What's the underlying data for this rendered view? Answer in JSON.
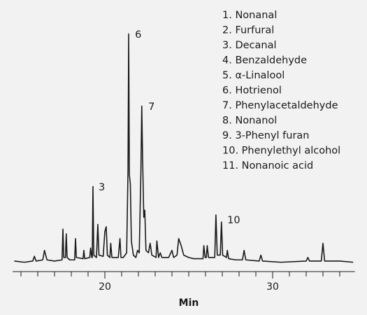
{
  "chart_data": {
    "type": "line",
    "xlabel": "Min",
    "color": "#1a1a1a",
    "xlim": [
      14.5,
      34.9
    ],
    "ylim": [
      0,
      100
    ],
    "xticks": [
      20,
      30
    ],
    "x_minor_ticks": [
      15,
      16,
      17,
      18,
      19,
      20,
      21,
      22,
      23,
      24,
      25,
      26,
      27,
      28,
      29,
      30,
      31,
      32,
      33,
      34
    ],
    "compound_list": [
      "1. Nonanal",
      "2. Furfural",
      "3. Decanal",
      "4. Benzaldehyde",
      "5. α-Linalool",
      "6. Hotrienol",
      "7. Phenylacetaldehyde",
      "8. Nonanol",
      "9. 3-Phenyl furan",
      "10. Phenylethyl alcohol",
      "11. Nonanoic acid"
    ],
    "annotations": [
      {
        "text": "3",
        "x": 19.46,
        "y": 32.5
      },
      {
        "text": "6",
        "x": 21.63,
        "y": 97
      },
      {
        "text": "7",
        "x": 22.42,
        "y": 66.6
      },
      {
        "text": "10",
        "x": 27.13,
        "y": 18.6
      }
    ],
    "x": [
      14.6,
      15.2,
      15.7,
      15.8,
      15.9,
      16.3,
      16.4,
      16.55,
      17.0,
      17.45,
      17.5,
      17.55,
      17.65,
      17.7,
      17.75,
      17.9,
      18.2,
      18.25,
      18.3,
      18.7,
      18.75,
      18.8,
      19.1,
      19.15,
      19.22,
      19.25,
      19.29,
      19.34,
      19.5,
      19.58,
      19.65,
      19.9,
      20.0,
      20.08,
      20.15,
      20.3,
      20.35,
      20.42,
      20.8,
      20.9,
      20.96,
      21.1,
      21.3,
      21.38,
      21.42,
      21.46,
      21.52,
      21.58,
      21.7,
      21.85,
      21.95,
      22.05,
      22.15,
      22.2,
      22.25,
      22.32,
      22.38,
      22.45,
      22.6,
      22.7,
      22.8,
      23.05,
      23.1,
      23.2,
      23.3,
      23.4,
      23.8,
      24.0,
      24.1,
      24.3,
      24.4,
      24.55,
      24.7,
      25.0,
      25.3,
      25.85,
      25.9,
      25.98,
      26.05,
      26.1,
      26.18,
      26.55,
      26.62,
      26.7,
      26.88,
      26.95,
      27.02,
      27.25,
      27.3,
      27.38,
      27.8,
      28.2,
      28.3,
      28.4,
      29.2,
      29.3,
      29.4,
      30.5,
      32.0,
      32.1,
      32.2,
      32.9,
      33.0,
      33.1,
      34.0,
      34.8
    ],
    "values": [
      1.5,
      1,
      1.5,
      3.5,
      1.5,
      2,
      6,
      2,
      1.5,
      2,
      15,
      3,
      3,
      13,
      3,
      2,
      2,
      11,
      3,
      2.5,
      6,
      2.5,
      3,
      7,
      3,
      3,
      33,
      4,
      3,
      17,
      4,
      3.5,
      14,
      16,
      4,
      3,
      9,
      3,
      3,
      11,
      3,
      3,
      5,
      40,
      97.5,
      38,
      34,
      10,
      4,
      3,
      6,
      5,
      40,
      67,
      45,
      20,
      23,
      6,
      5,
      9,
      4,
      3,
      10,
      3,
      5,
      3,
      3,
      6,
      3,
      4,
      11,
      8,
      4,
      3,
      2.5,
      2.5,
      8,
      3,
      3,
      8,
      3,
      3,
      21,
      4,
      4,
      18,
      4,
      3,
      6,
      2.5,
      2,
      2,
      6,
      2,
      1.5,
      4,
      1.5,
      1,
      1.5,
      3,
      1.5,
      1.5,
      9,
      1.5,
      1.5,
      1
    ]
  }
}
